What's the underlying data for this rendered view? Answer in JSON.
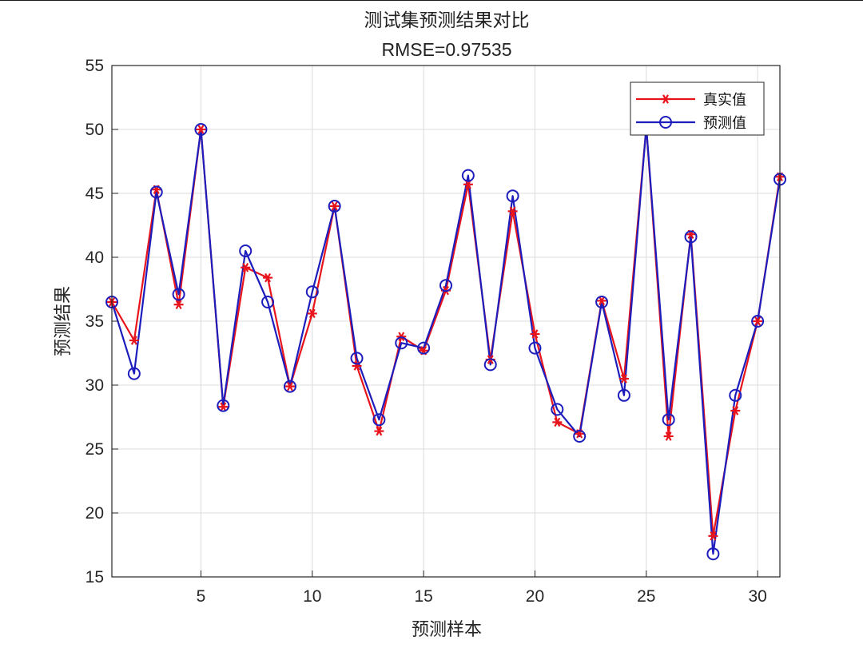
{
  "chart_data": {
    "type": "line",
    "title": "测试集预测结果对比",
    "subtitle": "RMSE=0.97535",
    "xlabel": "预测样本",
    "ylabel": "预测结果",
    "xlim": [
      1,
      31
    ],
    "ylim": [
      15,
      55
    ],
    "xticks": [
      5,
      10,
      15,
      20,
      25,
      30
    ],
    "yticks": [
      15,
      20,
      25,
      30,
      35,
      40,
      45,
      50,
      55
    ],
    "grid": true,
    "legend_position": "top-right",
    "x": [
      1,
      2,
      3,
      4,
      5,
      6,
      7,
      8,
      9,
      10,
      11,
      12,
      13,
      14,
      15,
      16,
      17,
      18,
      19,
      20,
      21,
      22,
      23,
      24,
      25,
      26,
      27,
      28,
      29,
      30,
      31
    ],
    "series": [
      {
        "name": "真实值",
        "color": "#e8141b",
        "marker": "asterisk",
        "values": [
          36.5,
          33.5,
          45.3,
          36.3,
          50.0,
          28.3,
          39.2,
          38.4,
          29.9,
          35.6,
          44.0,
          31.5,
          26.4,
          33.8,
          32.7,
          37.4,
          45.7,
          32.0,
          43.6,
          34.0,
          27.1,
          26.2,
          36.6,
          30.5,
          50.2,
          26.0,
          41.8,
          18.2,
          28.0,
          35.0,
          46.3
        ]
      },
      {
        "name": "预测值",
        "color": "#1d1dbd",
        "marker": "circle",
        "values": [
          36.5,
          30.9,
          45.1,
          37.1,
          50.0,
          28.4,
          40.5,
          36.5,
          29.9,
          37.3,
          44.0,
          32.1,
          27.3,
          33.3,
          32.9,
          37.8,
          46.4,
          31.6,
          44.8,
          32.9,
          28.1,
          26.0,
          36.5,
          29.2,
          50.2,
          27.3,
          41.6,
          16.8,
          29.2,
          35.0,
          46.1
        ]
      }
    ]
  }
}
